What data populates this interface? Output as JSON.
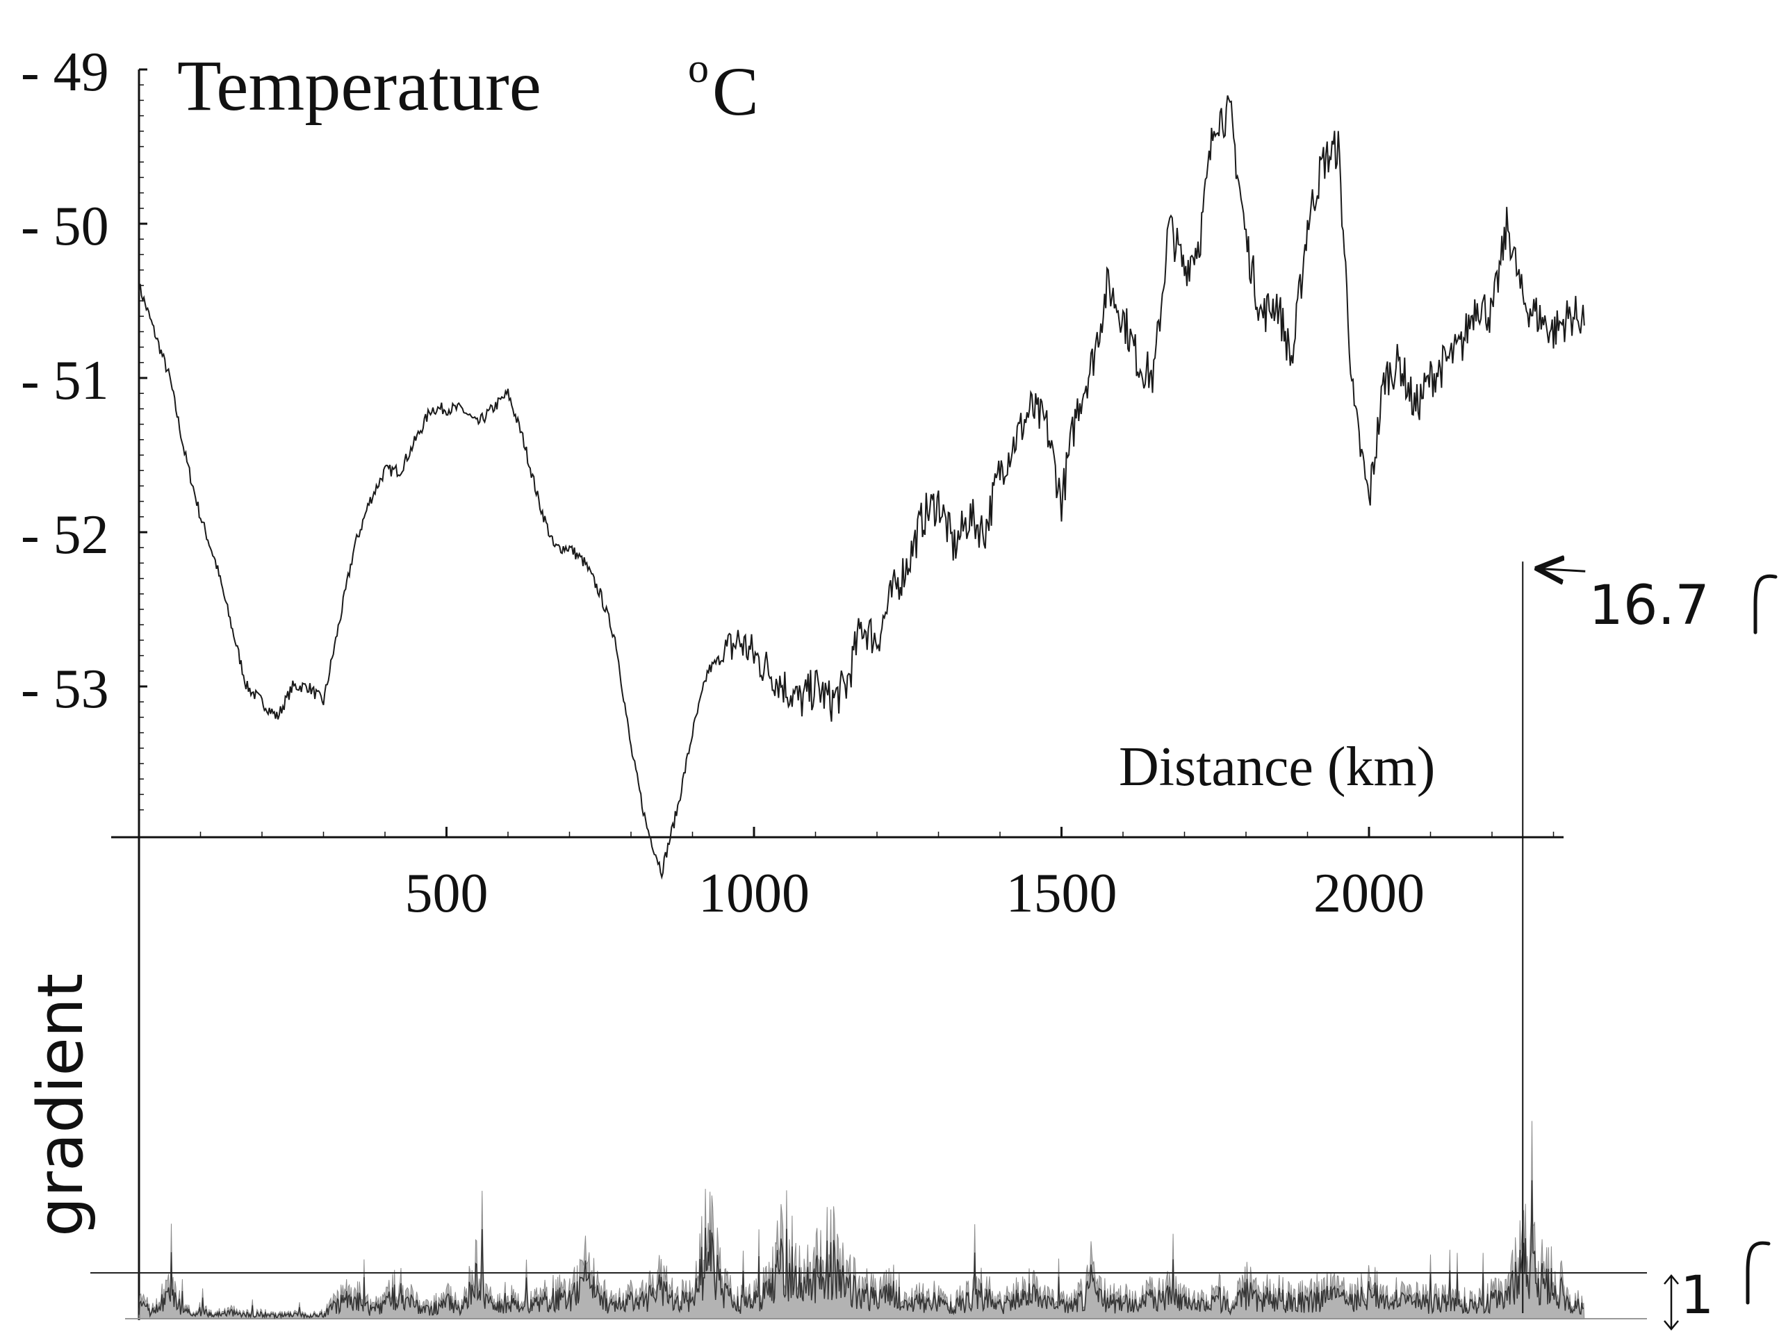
{
  "chart_data": [
    {
      "type": "line",
      "title": "Temperature",
      "title_unit_super": "o",
      "title_unit": "C",
      "xlabel": "Distance (km)",
      "xlim": [
        0,
        2350
      ],
      "ylim": [
        -49,
        -54
      ],
      "x_ticks": [
        {
          "value": 500,
          "label": "500"
        },
        {
          "value": 1000,
          "label": "1000"
        },
        {
          "value": 1500,
          "label": "1500"
        },
        {
          "value": 2000,
          "label": "2000"
        }
      ],
      "y_ticks": [
        {
          "value": -49,
          "label": "- 49"
        },
        {
          "value": -50,
          "label": "- 50"
        },
        {
          "value": -51,
          "label": "- 51"
        },
        {
          "value": -52,
          "label": "- 52"
        },
        {
          "value": -53,
          "label": "- 53"
        }
      ],
      "series": [
        {
          "x": [
            0,
            25,
            50,
            75,
            100,
            125,
            150,
            175,
            200,
            225,
            250,
            275,
            300,
            325,
            350,
            375,
            400,
            425,
            450,
            475,
            500,
            525,
            550,
            575,
            600,
            625,
            650,
            675,
            700,
            725,
            750,
            775,
            800,
            825,
            850,
            875,
            900,
            925,
            950,
            975,
            1000,
            1025,
            1050,
            1075,
            1100,
            1125,
            1150,
            1175,
            1200,
            1225,
            1250,
            1275,
            1300,
            1325,
            1350,
            1375,
            1400,
            1425,
            1450,
            1475,
            1500,
            1525,
            1550,
            1575,
            1600,
            1625,
            1650,
            1675,
            1700,
            1725,
            1750,
            1775,
            1800,
            1825,
            1850,
            1875,
            1900,
            1925,
            1950,
            1975,
            2000,
            2025,
            2050,
            2075,
            2100,
            2125,
            2150,
            2175,
            2200,
            2225,
            2250,
            2275,
            2300,
            2325,
            2350
          ],
          "y": [
            -50.4,
            -50.7,
            -51.0,
            -51.5,
            -51.9,
            -52.2,
            -52.6,
            -53.0,
            -53.1,
            -53.2,
            -53.0,
            -53.0,
            -53.1,
            -52.6,
            -52.1,
            -51.8,
            -51.6,
            -51.6,
            -51.4,
            -51.2,
            -51.2,
            -51.2,
            -51.3,
            -51.2,
            -51.1,
            -51.4,
            -51.8,
            -52.1,
            -52.1,
            -52.2,
            -52.4,
            -52.7,
            -53.4,
            -53.9,
            -54.2,
            -53.8,
            -53.3,
            -52.9,
            -52.8,
            -52.7,
            -52.8,
            -52.9,
            -53.0,
            -53.1,
            -53.0,
            -53.1,
            -53.0,
            -52.6,
            -52.7,
            -52.4,
            -52.2,
            -51.9,
            -51.8,
            -52.1,
            -51.9,
            -52.0,
            -51.6,
            -51.4,
            -51.2,
            -51.3,
            -51.8,
            -51.2,
            -50.9,
            -50.4,
            -50.6,
            -50.9,
            -51.0,
            -50.0,
            -50.3,
            -50.1,
            -49.3,
            -49.3,
            -50.1,
            -50.6,
            -50.5,
            -50.9,
            -50.0,
            -49.6,
            -49.5,
            -51.2,
            -51.8,
            -51.0,
            -50.9,
            -51.2,
            -51.0,
            -50.9,
            -50.8,
            -50.5,
            -50.6,
            -50.0,
            -50.5,
            -50.6,
            -50.7,
            -50.6,
            -50.6
          ]
        }
      ]
    },
    {
      "type": "line",
      "title": "",
      "ylabel": "gradient",
      "xlim": [
        0,
        2350
      ],
      "reference_line": {
        "value": 1,
        "label": "1"
      },
      "series": [
        {
          "x": [
            0,
            25,
            50,
            75,
            100,
            125,
            150,
            175,
            200,
            225,
            250,
            275,
            300,
            325,
            350,
            375,
            400,
            425,
            450,
            475,
            500,
            525,
            550,
            575,
            600,
            625,
            650,
            675,
            700,
            725,
            750,
            775,
            800,
            825,
            850,
            875,
            900,
            925,
            950,
            975,
            1000,
            1025,
            1050,
            1075,
            1100,
            1125,
            1150,
            1175,
            1200,
            1225,
            1250,
            1275,
            1300,
            1325,
            1350,
            1375,
            1400,
            1425,
            1450,
            1475,
            1500,
            1525,
            1550,
            1575,
            1600,
            1625,
            1650,
            1675,
            1700,
            1725,
            1750,
            1775,
            1800,
            1825,
            1850,
            1875,
            1900,
            1925,
            1950,
            1975,
            2000,
            2025,
            2050,
            2075,
            2100,
            2125,
            2150,
            2175,
            2200,
            2225,
            2250,
            2275,
            2300,
            2325,
            2350
          ],
          "y": [
            0.8,
            0.5,
            1.6,
            0.4,
            0.5,
            0.3,
            0.4,
            0.3,
            0.3,
            0.2,
            0.3,
            0.2,
            0.3,
            1.0,
            1.5,
            0.6,
            0.9,
            2.0,
            0.8,
            0.6,
            1.1,
            0.6,
            2.6,
            0.7,
            1.2,
            0.9,
            1.0,
            1.4,
            1.2,
            2.5,
            1.4,
            0.8,
            1.3,
            1.2,
            2.1,
            1.3,
            1.1,
            4.7,
            1.6,
            1.0,
            1.2,
            1.8,
            4.0,
            2.2,
            2.6,
            3.7,
            2.3,
            1.6,
            1.3,
            1.7,
            0.9,
            1.2,
            1.1,
            0.7,
            1.4,
            1.6,
            0.8,
            1.2,
            1.5,
            1.1,
            0.9,
            1.0,
            2.4,
            1.0,
            1.1,
            1.0,
            1.3,
            1.4,
            1.1,
            0.8,
            1.5,
            0.9,
            1.7,
            1.3,
            1.4,
            1.0,
            1.2,
            1.4,
            1.5,
            1.0,
            1.8,
            1.2,
            1.3,
            1.1,
            1.0,
            1.1,
            1.0,
            0.9,
            1.2,
            1.3,
            3.5,
            2.8,
            2.5,
            1.0,
            0.9
          ]
        }
      ]
    },
    {
      "type": "annotation",
      "text": "16.7",
      "pointer_x": 2250,
      "pointer_y": -52.1
    }
  ],
  "colors": {
    "line": "#1a1a1a",
    "gradient_fill": "#9a9a9a",
    "axis": "#111111"
  }
}
